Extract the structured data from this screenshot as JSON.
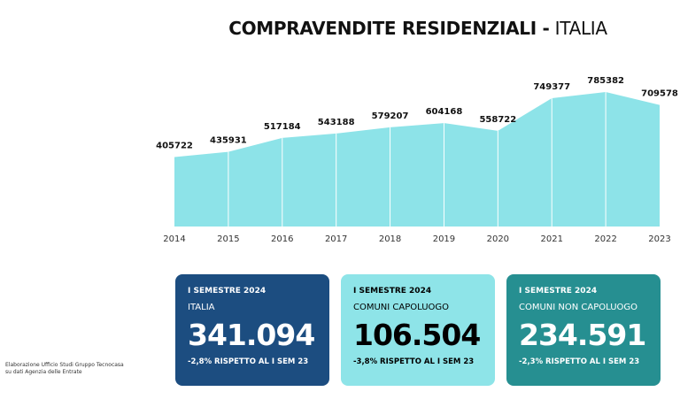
{
  "title": {
    "bold": "COMPRAVENDITE RESIDENZIALI -",
    "light": "ITALIA"
  },
  "chart_data": {
    "type": "area",
    "title": "COMPRAVENDITE RESIDENZIALI - ITALIA",
    "categories": [
      "2014",
      "2015",
      "2016",
      "2017",
      "2018",
      "2019",
      "2020",
      "2021",
      "2022",
      "2023"
    ],
    "values": [
      405722,
      435931,
      517184,
      543188,
      579207,
      604168,
      558722,
      749377,
      785382,
      709578
    ],
    "labels": [
      "405722",
      "435931",
      "517184",
      "543188",
      "579207",
      "604168",
      "558722",
      "749377",
      "785382",
      "709578"
    ],
    "ylim": [
      0,
      785382
    ],
    "color": "#8de3e8",
    "grid": false
  },
  "cards": [
    {
      "semester": "I SEMESTRE 2024",
      "area": "ITALIA",
      "value": "341.094",
      "delta": "-2,8% RISPETTO AL I SEM 23",
      "color": "#1c4d80"
    },
    {
      "semester": "I SEMESTRE 2024",
      "area": "COMUNI CAPOLUOGO",
      "value": "106.504",
      "delta": "-3,8% RISPETTO AL I SEM 23",
      "color": "#8ee4e8"
    },
    {
      "semester": "I SEMESTRE 2024",
      "area": "COMUNI NON CAPOLUOGO",
      "value": "234.591",
      "delta": "-2,3% RISPETTO AL I SEM 23",
      "color": "#268f91"
    }
  ],
  "source": {
    "line1": "Elaborazione Ufficio Studi Gruppo Tecnocasa",
    "line2": "su dati Agenzia delle Entrate"
  }
}
